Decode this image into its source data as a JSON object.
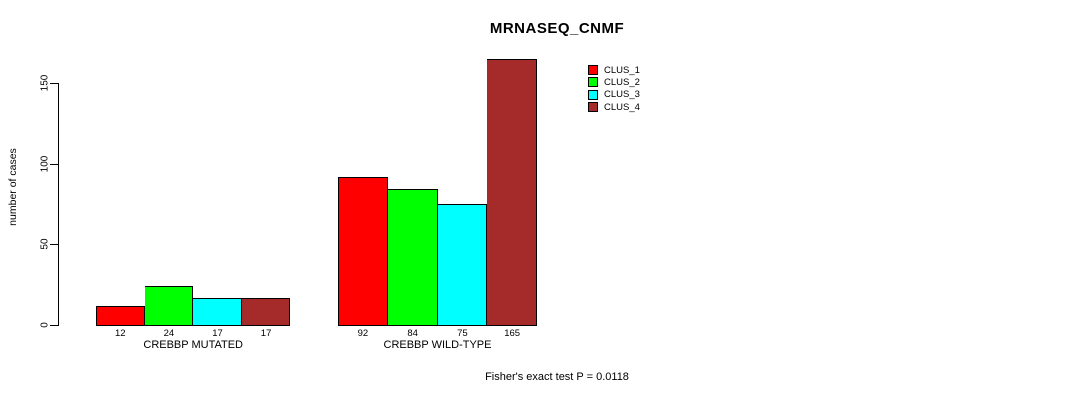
{
  "chart_data": {
    "type": "bar",
    "title": "MRNASEQ_CNMF",
    "ylabel": "number of cases",
    "xlabel": "",
    "ylim": [
      0,
      165
    ],
    "yticks": [
      0,
      50,
      100,
      150
    ],
    "grid": false,
    "legend_position": "top-right",
    "categories": [
      "CREBBP MUTATED",
      "CREBBP WILD-TYPE"
    ],
    "series": [
      {
        "name": "CLUS_1",
        "color": "#ff0000",
        "values": [
          12,
          92
        ]
      },
      {
        "name": "CLUS_2",
        "color": "#00ff00",
        "values": [
          24,
          84
        ]
      },
      {
        "name": "CLUS_3",
        "color": "#00ffff",
        "values": [
          17,
          75
        ]
      },
      {
        "name": "CLUS_4",
        "color": "#a52a2a",
        "values": [
          17,
          165
        ]
      }
    ],
    "annotation": "Fisher's exact test P = 0.0118"
  },
  "colors": {
    "background": "#ffffff",
    "text": "#000000",
    "axis": "#000000"
  }
}
